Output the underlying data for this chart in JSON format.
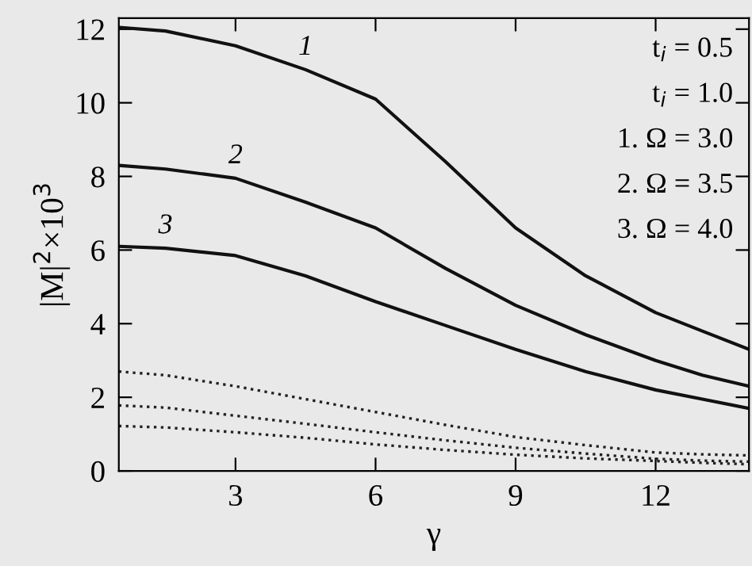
{
  "chart_data": {
    "type": "line",
    "xlabel": "γ",
    "ylabel": "|M|$^{2}$×10$^{3}$",
    "x": [
      0.5,
      1.5,
      3,
      4.5,
      6,
      7.5,
      9,
      10.5,
      12,
      13,
      14
    ],
    "series": [
      {
        "color": "#111111",
        "line_style": "solid",
        "values": [
          12.05,
          11.95,
          11.55,
          10.9,
          10.1,
          8.4,
          6.6,
          5.3,
          4.3,
          3.8,
          3.3
        ]
      },
      {
        "color": "#111111",
        "line_style": "solid",
        "values": [
          8.3,
          8.2,
          7.95,
          7.3,
          6.6,
          5.5,
          4.5,
          3.7,
          3.0,
          2.6,
          2.3
        ]
      },
      {
        "color": "#111111",
        "line_style": "solid",
        "values": [
          6.1,
          6.05,
          5.85,
          5.3,
          4.6,
          3.95,
          3.3,
          2.7,
          2.2,
          1.95,
          1.7
        ]
      },
      {
        "color": "#222222",
        "line_style": "dotted",
        "values": [
          2.7,
          2.6,
          2.3,
          1.95,
          1.6,
          1.25,
          0.92,
          0.7,
          0.5,
          0.45,
          0.42
        ]
      },
      {
        "color": "#222222",
        "line_style": "dotted",
        "values": [
          1.78,
          1.72,
          1.5,
          1.28,
          1.05,
          0.83,
          0.63,
          0.47,
          0.33,
          0.28,
          0.25
        ]
      },
      {
        "color": "#222222",
        "line_style": "dotted",
        "values": [
          1.22,
          1.18,
          1.05,
          0.9,
          0.72,
          0.57,
          0.44,
          0.34,
          0.27,
          0.22,
          0.18
        ]
      }
    ],
    "xlim": [
      0.5,
      14
    ],
    "ylim": [
      0,
      12.3
    ],
    "xticks": [
      3,
      6,
      9,
      12
    ],
    "yticks": [
      0,
      2,
      4,
      6,
      8,
      10,
      12
    ],
    "grid": false,
    "legend": false,
    "marker": "none",
    "annotations": [
      {
        "text": "1",
        "x": 4.5,
        "y": 10.9
      },
      {
        "text": "2",
        "x": 3,
        "y": 7.95
      },
      {
        "text": "3",
        "x": 1.5,
        "y": 6.05
      },
      "t$_{i}$ = 0.5",
      "t$_{i}$ = 1.0",
      "1. Ω = 3.0",
      "2. Ω = 3.5",
      "3. Ω = 4.0"
    ]
  }
}
